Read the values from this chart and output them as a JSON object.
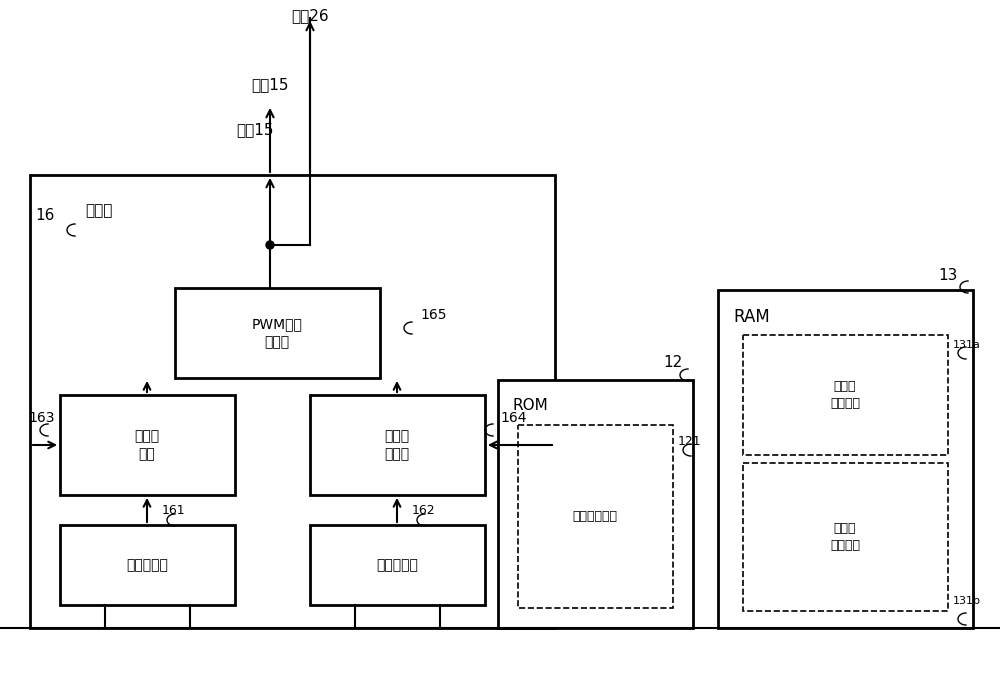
{
  "bg_color": "#ffffff",
  "fig_width": 10.0,
  "fig_height": 6.89,
  "dpi": 100,
  "labels": {
    "goto26": "去往26",
    "goto15": "去往15",
    "label16": "16",
    "label165": "165",
    "label163": "163",
    "label164": "164",
    "label161": "161",
    "label162": "162",
    "label12": "12",
    "label13": "13",
    "label121": "121",
    "label131a": "131a",
    "label131b": "131b",
    "block_chanshengbu": "产生部",
    "block_pwm": "PWM信号\n产生部",
    "block_zhouqi": "周期寄\n存器",
    "block_zhankongbi": "占空比\n寄存器",
    "block_jicun1": "寄存缓冲器",
    "block_jicun2": "寄存缓冲器",
    "block_ROM": "ROM",
    "block_RAM": "RAM",
    "block_sheding": "设定值存储表",
    "block_ram1": "设定值\n存储区域",
    "block_ram2": "设定值\n存储区域"
  }
}
